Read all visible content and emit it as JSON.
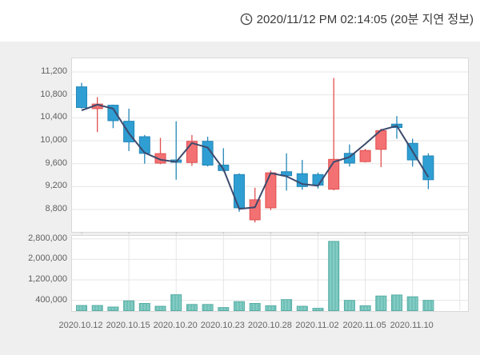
{
  "header": {
    "timestamp": "2020/11/12 PM 02:14:05 (20분 지연 정보)"
  },
  "chart_data": {
    "type": "candlestick",
    "title": "Daily stock price candlestick chart with volume (20-minute delayed data)",
    "legend_position": "none",
    "grid": "horizontal price grid, horizontal+vertical volume grid",
    "x_tick_labels": [
      "2020.10.12",
      "2020.10.15",
      "2020.10.20",
      "2020.10.23",
      "2020.10.28",
      "2020.11.02",
      "2020.11.05",
      "2020.11.10"
    ],
    "x_tick_indices": [
      0,
      3,
      6,
      9,
      12,
      15,
      18,
      21
    ],
    "n_candles": 23,
    "price": {
      "ylabel": "",
      "yticks": [
        8800,
        9200,
        9600,
        10000,
        10400,
        10800,
        11200
      ],
      "ylim": [
        8410,
        11437
      ],
      "ohlc": [
        [
          10940,
          11010,
          10560,
          10580
        ],
        [
          10560,
          10760,
          10150,
          10640
        ],
        [
          10620,
          10630,
          10220,
          10350
        ],
        [
          10340,
          10560,
          9820,
          9980
        ],
        [
          10070,
          10100,
          9600,
          9780
        ],
        [
          9610,
          10050,
          9590,
          9775
        ],
        [
          9665,
          10340,
          9320,
          9625
        ],
        [
          9620,
          10100,
          9560,
          9990
        ],
        [
          9990,
          10070,
          9550,
          9575
        ],
        [
          9575,
          9870,
          9460,
          9480
        ],
        [
          9410,
          9430,
          8760,
          8830
        ],
        [
          8620,
          9180,
          8575,
          8970
        ],
        [
          8830,
          9480,
          8790,
          9440
        ],
        [
          9460,
          9780,
          9130,
          9390
        ],
        [
          9425,
          9665,
          9145,
          9200
        ],
        [
          9410,
          9445,
          9165,
          9225
        ],
        [
          9155,
          11095,
          9135,
          9675
        ],
        [
          9780,
          9935,
          9550,
          9610
        ],
        [
          9635,
          9860,
          9620,
          9830
        ],
        [
          9850,
          10210,
          9540,
          10175
        ],
        [
          10290,
          10430,
          10035,
          10230
        ],
        [
          9955,
          10035,
          9550,
          9665
        ],
        [
          9735,
          9780,
          9155,
          9320
        ]
      ],
      "ma_line": [
        10530,
        10630,
        10560,
        10130,
        9790,
        9670,
        9630,
        9960,
        9880,
        9505,
        8810,
        8840,
        9435,
        9380,
        9245,
        9215,
        9630,
        9715,
        9945,
        10185,
        10260,
        9815,
        9365
      ]
    },
    "volume": {
      "ylabel": "",
      "yticks": [
        400000,
        1200000,
        2000000,
        2800000
      ],
      "ylim": [
        0,
        2915000
      ],
      "values": [
        200000,
        200000,
        140000,
        380000,
        280000,
        170000,
        620000,
        240000,
        240000,
        120000,
        350000,
        280000,
        190000,
        430000,
        170000,
        90000,
        2700000,
        400000,
        190000,
        570000,
        610000,
        540000,
        400000
      ]
    },
    "colors": {
      "up_fill": "#f37172",
      "up_stroke": "#e14f50",
      "down_fill": "#2f9ed3",
      "down_stroke": "#2387b8",
      "ma_line": "#3c4a6d",
      "volume_fill": "#83ccc4",
      "volume_fill_stripe": "#6fc0b7",
      "volume_stroke": "#58aea5",
      "grid": "#e6e6e6",
      "panel_bg": "#efeff0",
      "axis_text": "#5f5f5f"
    }
  }
}
